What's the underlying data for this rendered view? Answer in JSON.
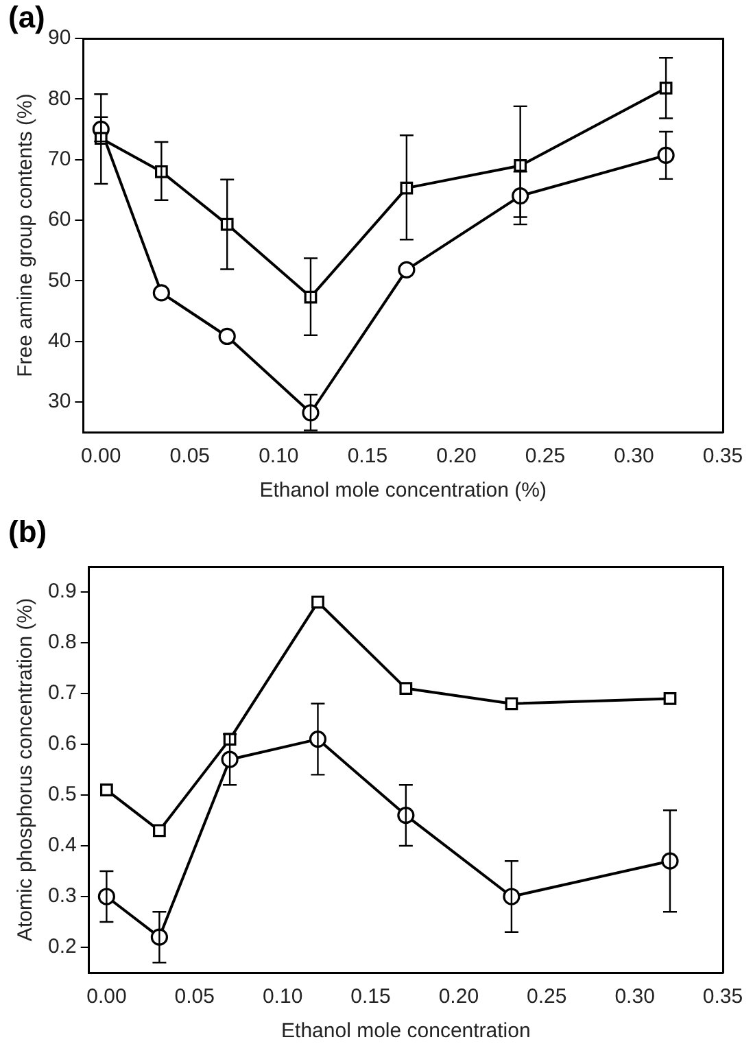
{
  "chart_data": [
    {
      "type": "line",
      "annotations": [
        "(a)"
      ],
      "xlabel": "Ethanol mole concentration (%)",
      "ylabel": "Free amine group contents (%)",
      "xlim": [
        -0.01,
        0.35
      ],
      "xticks": [
        {
          "value": 0,
          "label": "0.00"
        },
        {
          "value": 0.05,
          "label": "0.05"
        },
        {
          "value": 0.1,
          "label": "0.10"
        },
        {
          "value": 0.15,
          "label": "0.15"
        },
        {
          "value": 0.2,
          "label": "0.20"
        },
        {
          "value": 0.25,
          "label": "0.25"
        },
        {
          "value": 0.3,
          "label": "0.30"
        },
        {
          "value": 0.35,
          "label": "0.35"
        }
      ],
      "ylim": [
        25,
        90
      ],
      "yticks": [
        30,
        40,
        50,
        60,
        70,
        80,
        90
      ],
      "grid": false,
      "legend": false,
      "line_style": "solid",
      "series": [
        {
          "color": "#000000",
          "marker": "square",
          "x": [
            0,
            0.034,
            0.071,
            0.118,
            0.172,
            0.236,
            0.318
          ],
          "values": [
            73.5,
            68,
            59.3,
            47.3,
            65.3,
            69,
            81.8
          ],
          "errors": [
            [
              66,
              80.8
            ],
            [
              63.3,
              72.9
            ],
            [
              51.9,
              66.7
            ],
            [
              41,
              53.7
            ],
            [
              56.8,
              74
            ],
            [
              60.5,
              78.8
            ],
            [
              76.8,
              86.8
            ]
          ]
        },
        {
          "color": "#000000",
          "marker": "circle",
          "x": [
            0,
            0.034,
            0.071,
            0.118,
            0.172,
            0.236,
            0.318
          ],
          "values": [
            75,
            48,
            40.8,
            28.2,
            51.8,
            64,
            70.7
          ],
          "errors": [
            [
              73,
              77
            ],
            null,
            null,
            [
              25.3,
              31.2
            ],
            null,
            [
              59.3,
              68
            ],
            [
              66.8,
              74.6
            ]
          ]
        }
      ]
    },
    {
      "type": "line",
      "annotations": [
        "(b)"
      ],
      "xlabel": "Ethanol mole concentration",
      "ylabel": "Atomic phosphorus concentration (%)",
      "xlim": [
        -0.01,
        0.35
      ],
      "xticks": [
        {
          "value": 0,
          "label": "0.00"
        },
        {
          "value": 0.05,
          "label": "0.05"
        },
        {
          "value": 0.1,
          "label": "0.10"
        },
        {
          "value": 0.15,
          "label": "0.15"
        },
        {
          "value": 0.2,
          "label": "0.20"
        },
        {
          "value": 0.25,
          "label": "0.25"
        },
        {
          "value": 0.3,
          "label": "0.30"
        },
        {
          "value": 0.35,
          "label": "0.35"
        }
      ],
      "ylim": [
        0.15,
        0.95
      ],
      "yticks": [
        0.2,
        0.3,
        0.4,
        0.5,
        0.6,
        0.7,
        0.8,
        0.9
      ],
      "grid": false,
      "legend": false,
      "line_style": "solid",
      "series": [
        {
          "color": "#000000",
          "marker": "square",
          "x": [
            0,
            0.03,
            0.07,
            0.12,
            0.17,
            0.23,
            0.32
          ],
          "values": [
            0.51,
            0.43,
            0.61,
            0.88,
            0.71,
            0.68,
            0.69
          ]
        },
        {
          "color": "#000000",
          "marker": "circle",
          "x": [
            0,
            0.03,
            0.07,
            0.12,
            0.17,
            0.23,
            0.32
          ],
          "values": [
            0.3,
            0.22,
            0.57,
            0.61,
            0.46,
            0.3,
            0.37
          ],
          "errors": [
            0.05,
            0.05,
            0.05,
            0.07,
            0.06,
            0.07,
            0.1
          ]
        }
      ]
    }
  ]
}
